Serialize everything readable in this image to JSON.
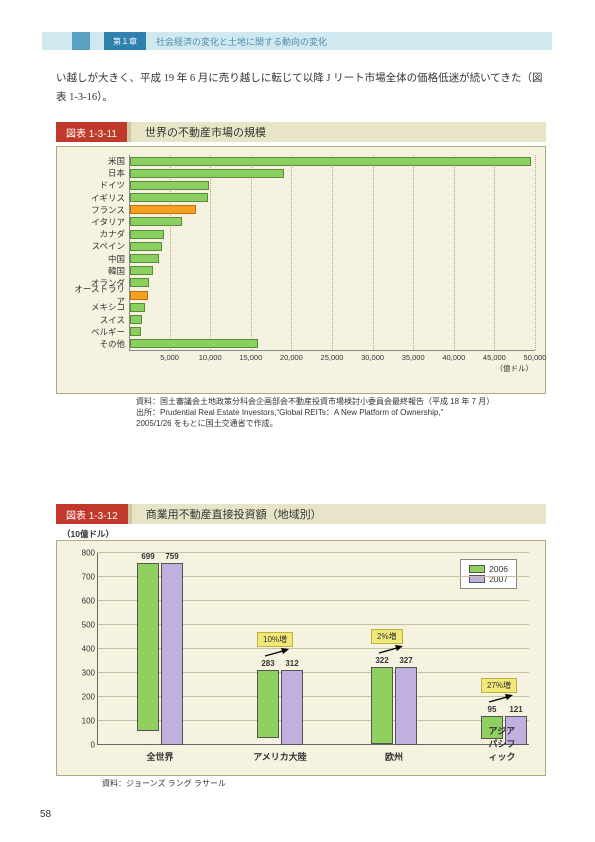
{
  "header": {
    "chapter": "第１章",
    "title": "社会経済の変化と土地に関する動向の変化"
  },
  "body_text": "い越しが大きく、平成 19 年 6 月に売り越しに転じて以降 J リート市場全体の価格低迷が続いてきた（図表 1-3-16）。",
  "fig1": {
    "label": "図表 1-3-11",
    "title": "世界の不動産市場の規模",
    "xmax": 50000,
    "xstep": 5000,
    "unit": "（億ドル）",
    "bars": [
      {
        "name": "米国",
        "value": 49500,
        "color": "green"
      },
      {
        "name": "日本",
        "value": 19000,
        "color": "green"
      },
      {
        "name": "ドイツ",
        "value": 9800,
        "color": "green"
      },
      {
        "name": "イギリス",
        "value": 9600,
        "color": "green"
      },
      {
        "name": "フランス",
        "value": 8200,
        "color": "orange"
      },
      {
        "name": "イタリア",
        "value": 6400,
        "color": "green"
      },
      {
        "name": "カナダ",
        "value": 4200,
        "color": "green"
      },
      {
        "name": "スペイン",
        "value": 4000,
        "color": "green"
      },
      {
        "name": "中国",
        "value": 3600,
        "color": "green"
      },
      {
        "name": "韓国",
        "value": 2900,
        "color": "green"
      },
      {
        "name": "オランダ",
        "value": 2300,
        "color": "green"
      },
      {
        "name": "オーストラリア",
        "value": 2200,
        "color": "orange"
      },
      {
        "name": "メキシコ",
        "value": 1900,
        "color": "green"
      },
      {
        "name": "スイス",
        "value": 1500,
        "color": "green"
      },
      {
        "name": "ベルギー",
        "value": 1400,
        "color": "green"
      },
      {
        "name": "その他",
        "value": 15800,
        "color": "green"
      }
    ],
    "source": "資料：国土審議会土地政策分科会企画部会不動産投資市場検討小委員会最終報告（平成 18 年 7 月）\n出所：Prudential Real Estate Investors,“Global REITs：A New Platform of Ownership,”\n2005/1/26 をもとに国土交通省で作成。"
  },
  "fig2": {
    "label": "図表 1-3-12",
    "title": "商業用不動産直接投資額（地域別）",
    "unit": "（10億ドル）",
    "ymax": 800,
    "ystep": 100,
    "legend": [
      "2006",
      "2007"
    ],
    "categories": [
      "全世界",
      "アメリカ大陸",
      "欧州",
      "アジアパシフィック"
    ],
    "series": [
      {
        "vals": [
          699,
          759
        ]
      },
      {
        "vals": [
          283,
          312
        ],
        "callout": "10%増"
      },
      {
        "vals": [
          322,
          327
        ],
        "callout": "2%増"
      },
      {
        "vals": [
          95,
          121
        ],
        "callout": "27%増"
      }
    ],
    "colors": {
      "2006": "#90d060",
      "2007": "#c0b0e0"
    },
    "source": "資料：ジョーンズ ラング ラサール"
  },
  "page": "58"
}
